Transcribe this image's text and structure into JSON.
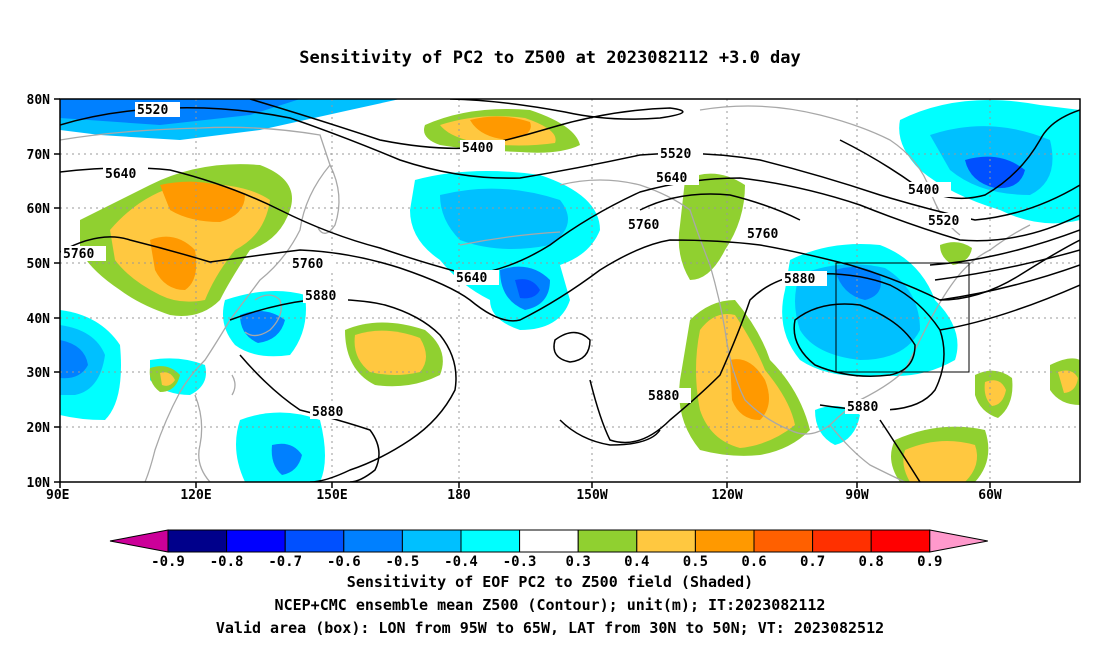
{
  "title": "Sensitivity of PC2 to Z500 at 2023082112 +3.0 day",
  "captions": {
    "line1": "Sensitivity of EOF PC2 to Z500 field (Shaded)",
    "line2": "NCEP+CMC ensemble mean Z500 (Contour); unit(m); IT:2023082112",
    "line3": "Valid area (box): LON from 95W to 65W, LAT from 30N to 50N; VT: 2023082512"
  },
  "axes": {
    "lat_labels": [
      "80N",
      "70N",
      "60N",
      "50N",
      "40N",
      "30N",
      "20N",
      "10N"
    ],
    "lon_labels": [
      "90E",
      "120E",
      "150E",
      "180",
      "150W",
      "120W",
      "90W",
      "60W"
    ]
  },
  "colorbar": {
    "labels": [
      "-0.9",
      "-0.8",
      "-0.7",
      "-0.6",
      "-0.5",
      "-0.4",
      "-0.3",
      "0.3",
      "0.4",
      "0.5",
      "0.6",
      "0.7",
      "0.8",
      "0.9"
    ],
    "colors": [
      "#00008b",
      "#0000ff",
      "#0050ff",
      "#0080ff",
      "#00c0ff",
      "#00ffff",
      "#ffffff",
      "#90d030",
      "#ffc840",
      "#ff9900",
      "#ff6000",
      "#ff3000",
      "#ff0000"
    ],
    "low_end_color": "#cc0099",
    "high_end_color": "#ff99cc"
  },
  "contours": {
    "labels": [
      "5520",
      "5640",
      "5760",
      "5400",
      "5520",
      "5640",
      "5760",
      "5880",
      "5640",
      "5760",
      "5880",
      "5880",
      "5760",
      "5880",
      "5880",
      "5400",
      "5520"
    ]
  },
  "valid_box": {
    "lon_range": "95W-65W",
    "lat_range": "30N-50N"
  }
}
